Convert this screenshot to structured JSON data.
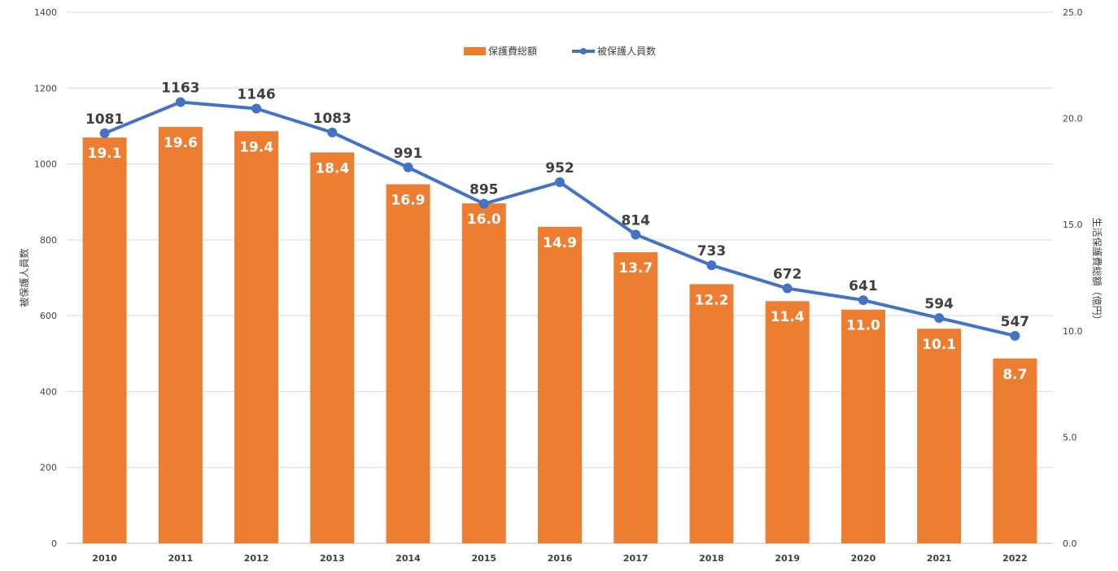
{
  "chart_data": {
    "type": "bar",
    "title": "",
    "categories": [
      "2010",
      "2011",
      "2012",
      "2013",
      "2014",
      "2015",
      "2016",
      "2017",
      "2018",
      "2019",
      "2020",
      "2021",
      "2022"
    ],
    "series": [
      {
        "name": "保護費総額",
        "chart_type": "bar",
        "axis": "right",
        "color": "#ED7D31",
        "values": [
          19.1,
          19.6,
          19.4,
          18.4,
          16.9,
          16.0,
          14.9,
          13.7,
          12.2,
          11.4,
          11.0,
          10.1,
          8.7
        ],
        "labels": [
          "19.1",
          "19.6",
          "19.4",
          "18.4",
          "16.9",
          "16.0",
          "14.9",
          "13.7",
          "12.2",
          "11.4",
          "11.0",
          "10.1",
          "8.7"
        ]
      },
      {
        "name": "被保護人員数",
        "chart_type": "line",
        "axis": "left",
        "color": "#4472C4",
        "values": [
          1081,
          1163,
          1146,
          1083,
          991,
          895,
          952,
          814,
          733,
          672,
          641,
          594,
          547
        ],
        "labels": [
          "1081",
          "1163",
          "1146",
          "1083",
          "991",
          "895",
          "952",
          "814",
          "733",
          "672",
          "641",
          "594",
          "547"
        ]
      }
    ],
    "y_left": {
      "label": "被保護人員数",
      "ylim": [
        0,
        1400
      ],
      "ticks": [
        "0",
        "200",
        "400",
        "600",
        "800",
        "1000",
        "1200",
        "1400"
      ]
    },
    "y_right": {
      "label": "生活保護費総額（億円）",
      "ylim": [
        0,
        25
      ],
      "ticks": [
        "0.0",
        "5.0",
        "10.0",
        "15.0",
        "20.0",
        "25.0"
      ]
    },
    "grid": true,
    "legend": "top-center"
  }
}
